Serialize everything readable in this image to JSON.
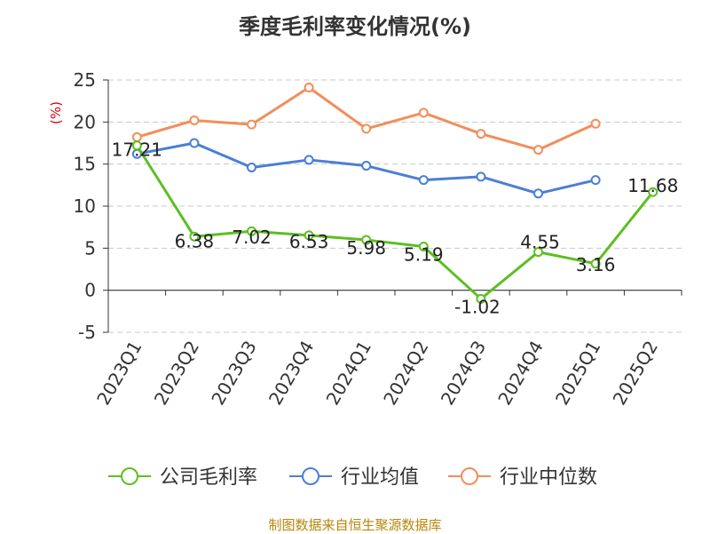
{
  "chart_data": {
    "type": "line",
    "title": "季度毛利率变化情况(%)",
    "ylabel": "(%)",
    "xlabel": "",
    "ylim": [
      -5,
      25
    ],
    "yticks": [
      -5,
      0,
      5,
      10,
      15,
      20,
      25
    ],
    "grid": true,
    "categories": [
      "2023Q1",
      "2023Q2",
      "2023Q3",
      "2023Q4",
      "2024Q1",
      "2024Q2",
      "2024Q3",
      "2024Q4",
      "2025Q1",
      "2025Q2"
    ],
    "series": [
      {
        "name": "公司毛利率",
        "color": "#5cbf22",
        "values": [
          17.21,
          6.38,
          7.02,
          6.53,
          5.98,
          5.19,
          -1.02,
          4.55,
          3.16,
          11.68
        ],
        "labels": [
          "17.21",
          "6.38",
          "7.02",
          "6.53",
          "5.98",
          "5.19",
          "-1.02",
          "4.55",
          "3.16",
          "11.68"
        ]
      },
      {
        "name": "行业均值",
        "color": "#4a7fd6",
        "values": [
          16.2,
          17.5,
          14.6,
          15.5,
          14.8,
          13.1,
          13.5,
          11.5,
          13.1,
          null
        ]
      },
      {
        "name": "行业中位数",
        "color": "#f28e5a",
        "values": [
          18.2,
          20.2,
          19.7,
          24.1,
          19.2,
          21.1,
          18.6,
          16.7,
          19.8,
          null
        ]
      }
    ],
    "legend_position": "bottom"
  },
  "source": "制图数据来自恒生聚源数据库"
}
